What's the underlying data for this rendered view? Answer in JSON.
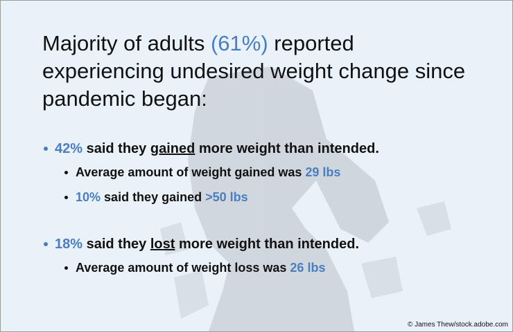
{
  "title": {
    "lines": [
      [
        {
          "text": "Majority of adults"
        },
        {
          "text": "(61%)",
          "style": "highlight"
        },
        {
          "text": "reported"
        }
      ],
      [
        {
          "text": "experiencing undesired weight change since"
        }
      ],
      [
        {
          "text": "pandemic began:"
        }
      ]
    ]
  },
  "bullets": [
    {
      "level": 1,
      "runs": [
        {
          "text": "42%",
          "style": "highlight"
        },
        {
          "text": "said they"
        },
        {
          "text": "gained",
          "style": "underline"
        },
        {
          "text": "more weight than intended."
        }
      ]
    },
    {
      "level": 2,
      "runs": [
        {
          "text": "Average amount of weight gained was"
        },
        {
          "text": "29 lbs",
          "style": "highlight"
        }
      ]
    },
    {
      "level": 2,
      "runs": [
        {
          "text": "10%",
          "style": "highlight"
        },
        {
          "text": "said they gained"
        },
        {
          "text": ">50 lbs",
          "style": "highlight"
        }
      ]
    },
    {
      "level": 1,
      "runs": [
        {
          "text": "18%",
          "style": "highlight"
        },
        {
          "text": "said they"
        },
        {
          "text": "lost",
          "style": "underline"
        },
        {
          "text": "more weight than intended."
        }
      ]
    },
    {
      "level": 2,
      "runs": [
        {
          "text": "Average amount of weight loss was"
        },
        {
          "text": "26 lbs",
          "style": "highlight"
        }
      ]
    }
  ],
  "credit": "© James Thew/stock.adobe.com"
}
